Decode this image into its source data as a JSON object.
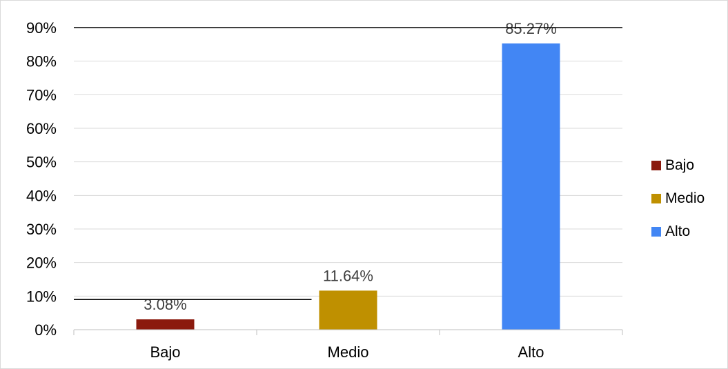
{
  "chart_data": {
    "type": "bar",
    "categories": [
      "Bajo",
      "Medio",
      "Alto"
    ],
    "values": [
      3.08,
      11.64,
      85.27
    ],
    "data_labels": [
      "3.08%",
      "11.64%",
      "85.27%"
    ],
    "colors": [
      "#8b1a0e",
      "#bf9000",
      "#4286f4"
    ],
    "ylim": [
      0,
      90
    ],
    "yticks": [
      "0%",
      "10%",
      "20%",
      "30%",
      "40%",
      "50%",
      "60%",
      "70%",
      "80%",
      "90%"
    ],
    "grid": true,
    "legend": {
      "placement": "right",
      "items": [
        "Bajo",
        "Medio",
        "Alto"
      ]
    }
  }
}
